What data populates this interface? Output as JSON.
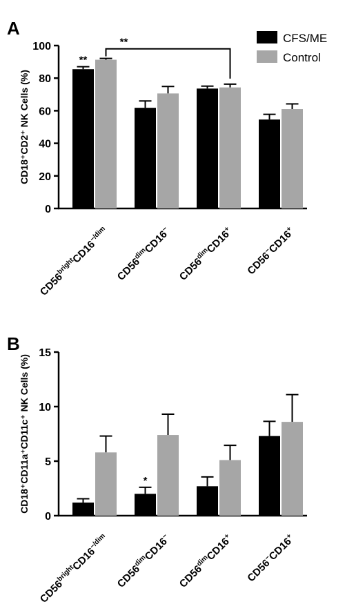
{
  "legend": {
    "items": [
      {
        "label": "CFS/ME",
        "color": "#000000"
      },
      {
        "label": "Control",
        "color": "#a6a6a6"
      }
    ],
    "placement": "top-right"
  },
  "chart_data": [
    {
      "type": "bar",
      "panel": "A",
      "ylabel": "CD18⁺CD2⁺ NK Cells (%)",
      "ylim": [
        0,
        100
      ],
      "yticks": [
        0,
        20,
        40,
        60,
        80,
        100
      ],
      "categories": [
        {
          "base": "CD56",
          "sup1": "bright",
          "mid": "CD16",
          "sup2": "−/dim"
        },
        {
          "base": "CD56",
          "sup1": "dim",
          "mid": "CD16",
          "sup2": "−"
        },
        {
          "base": "CD56",
          "sup1": "dim",
          "mid": "CD16",
          "sup2": "+"
        },
        {
          "base": "CD56",
          "sup1": "−",
          "mid": "CD16",
          "sup2": "+"
        }
      ],
      "series": [
        {
          "name": "CFS/ME",
          "color": "#000000",
          "values": [
            85.5,
            61.8,
            73.6,
            54.6
          ],
          "errors": [
            1.5,
            4.2,
            1.5,
            3.2
          ]
        },
        {
          "name": "Control",
          "color": "#a6a6a6",
          "values": [
            91.3,
            70.6,
            74.3,
            61.0
          ],
          "errors": [
            0.8,
            4.3,
            2.0,
            3.2
          ]
        }
      ],
      "annotations": [
        {
          "type": "star",
          "text": "**",
          "category": 0,
          "series": 0
        },
        {
          "type": "bracket",
          "text": "**",
          "from_category": 0,
          "from_series": 1,
          "to_category": 2,
          "to_series": 1,
          "y": 98
        }
      ]
    },
    {
      "type": "bar",
      "panel": "B",
      "ylabel": "CD18⁺CD11a⁺CD11c⁺ NK Cells (%)",
      "ylim": [
        0,
        15
      ],
      "yticks": [
        0,
        5,
        10,
        15
      ],
      "categories": [
        {
          "base": "CD56",
          "sup1": "bright",
          "mid": "CD16",
          "sup2": "−/dim"
        },
        {
          "base": "CD56",
          "sup1": "dim",
          "mid": "CD16",
          "sup2": "−"
        },
        {
          "base": "CD56",
          "sup1": "dim",
          "mid": "CD16",
          "sup2": "+"
        },
        {
          "base": "CD56",
          "sup1": "−",
          "mid": "CD16",
          "sup2": "+"
        }
      ],
      "series": [
        {
          "name": "CFS/ME",
          "color": "#000000",
          "values": [
            1.2,
            2.0,
            2.7,
            7.3
          ],
          "errors": [
            0.35,
            0.6,
            0.85,
            1.35
          ]
        },
        {
          "name": "Control",
          "color": "#a6a6a6",
          "values": [
            5.8,
            7.4,
            5.1,
            8.6
          ],
          "errors": [
            1.5,
            1.9,
            1.35,
            2.5
          ]
        }
      ],
      "annotations": [
        {
          "type": "star",
          "text": "*",
          "category": 1,
          "series": 0
        }
      ]
    }
  ]
}
